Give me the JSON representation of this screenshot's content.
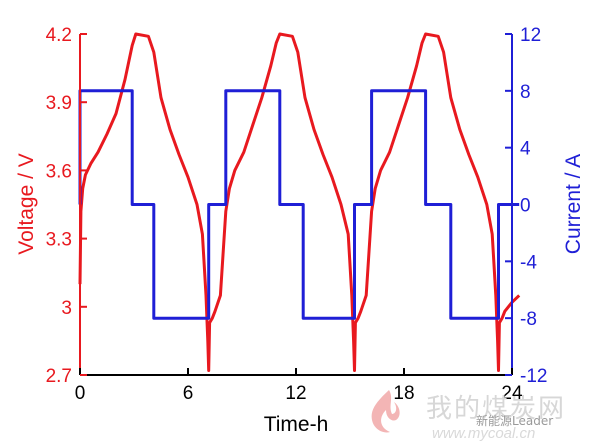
{
  "chart_data": {
    "type": "line",
    "title": "",
    "xlabel": "Time-h",
    "ylabel_left": "Voltage / V",
    "ylabel_right": "Current / A",
    "xlim": [
      0,
      24
    ],
    "ylim_left": [
      2.7,
      4.2
    ],
    "ylim_right": [
      -12,
      12
    ],
    "x_ticks": [
      "0",
      "6",
      "12",
      "18",
      "24"
    ],
    "y_left_ticks": [
      "4.2",
      "3.9",
      "3.6",
      "3.3",
      "3",
      "2.7"
    ],
    "y_right_ticks": [
      "12",
      "8",
      "4",
      "0",
      "-4",
      "-8",
      "-12"
    ],
    "grid": false,
    "colors": {
      "voltage": "#e8191f",
      "current": "#1f1fd6",
      "axis": "#000000"
    },
    "series": [
      {
        "axis": "left",
        "x": [
          0,
          0.05,
          0.15,
          0.3,
          0.6,
          1,
          1.5,
          2,
          2.5,
          2.9,
          3.1,
          3.8,
          4.1,
          4.5,
          5,
          5.5,
          6,
          6.5,
          6.8,
          7,
          7.1,
          7.15,
          7.2,
          7.35,
          7.5,
          7.8,
          8.1,
          8.3,
          8.6,
          9.1,
          9.6,
          10.1,
          10.6,
          10.9,
          11.1,
          11.8,
          12.1,
          12.5,
          13,
          13.5,
          14,
          14.5,
          14.9,
          15.1,
          15.2,
          15.25,
          15.3,
          15.45,
          15.6,
          15.9,
          16.2,
          16.4,
          16.7,
          17.2,
          17.7,
          18.2,
          18.7,
          19,
          19.2,
          19.9,
          20.2,
          20.6,
          21.1,
          21.6,
          22.1,
          22.6,
          22.9,
          23.1,
          23.2,
          23.25,
          23.3,
          23.45,
          23.6,
          24,
          24.4
        ],
        "y": [
          3.1,
          3.42,
          3.52,
          3.58,
          3.63,
          3.68,
          3.76,
          3.85,
          4.0,
          4.15,
          4.2,
          4.19,
          4.12,
          3.92,
          3.78,
          3.67,
          3.57,
          3.45,
          3.32,
          3.05,
          2.85,
          2.72,
          2.93,
          2.95,
          2.98,
          3.05,
          3.42,
          3.52,
          3.6,
          3.68,
          3.8,
          3.92,
          4.06,
          4.16,
          4.2,
          4.19,
          4.12,
          3.92,
          3.78,
          3.67,
          3.57,
          3.45,
          3.32,
          3.05,
          2.85,
          2.72,
          2.93,
          2.95,
          2.98,
          3.05,
          3.42,
          3.52,
          3.6,
          3.68,
          3.8,
          3.92,
          4.06,
          4.16,
          4.2,
          4.19,
          4.12,
          3.92,
          3.78,
          3.67,
          3.57,
          3.45,
          3.32,
          3.05,
          2.85,
          2.72,
          2.93,
          2.95,
          2.98,
          3.02,
          3.05
        ]
      },
      {
        "axis": "right",
        "x": [
          0,
          0,
          2.9,
          2.9,
          4.1,
          4.1,
          7.15,
          7.15,
          8.1,
          8.1,
          11.1,
          11.1,
          12.4,
          12.4,
          15.25,
          15.25,
          16.2,
          16.2,
          19.2,
          19.2,
          20.6,
          20.6,
          23.25,
          23.25,
          24.4
        ],
        "y": [
          0,
          8,
          8,
          0,
          0,
          -8,
          -8,
          0,
          0,
          8,
          8,
          0,
          0,
          -8,
          -8,
          0,
          0,
          8,
          8,
          0,
          0,
          -8,
          -8,
          0,
          0
        ]
      }
    ]
  },
  "watermark": {
    "text": "我的煤炭网",
    "sub": "新能源Leader",
    "url": "www.mycoal.cn"
  }
}
